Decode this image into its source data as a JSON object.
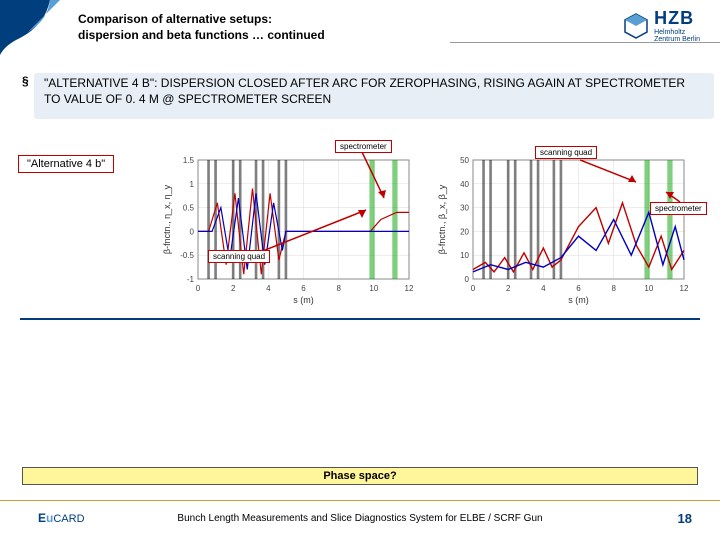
{
  "header": {
    "title_line1": "Comparison of alternative setups:",
    "title_line2": "dispersion and beta functions … continued",
    "logo_main": "HZB",
    "logo_sub1": "Helmholtz",
    "logo_sub2": "Zentrum Berlin"
  },
  "bullet": {
    "text": "\"ALTERNATIVE 4 B\": DISPERSION CLOSED AFTER ARC FOR ZEROPHASING, RISING AGAIN AT SPECTROMETER TO VALUE OF 0. 4 M @ SPECTROMETER SCREEN"
  },
  "alt_label": "\"Alternative 4 b\"",
  "annotations": {
    "spec_top": "spectrometer",
    "scan_top": "scanning quad",
    "spec_right": "spectrometer",
    "scan_bottom": "scanning quad"
  },
  "phase_question": "Phase space?",
  "footer": {
    "logo_e": "E",
    "logo_u": "u",
    "logo_rest": "CARD",
    "text": "Bunch Length Measurements and Slice Diagnostics System for ELBE / SCRF Gun",
    "page": "18"
  },
  "chart_left": {
    "type": "line",
    "xlabel": "s (m)",
    "ylabel": "β-fnctn., η_x, η_y",
    "xlim": [
      0,
      12
    ],
    "ylim": [
      -1.0,
      1.5
    ],
    "xticks": [
      0,
      2,
      4,
      6,
      8,
      10,
      12
    ],
    "yticks": [
      -1.0,
      -0.5,
      0.0,
      0.5,
      1.0,
      1.5
    ],
    "grid_color": "#d9d9d9",
    "bg": "#ffffff",
    "label_fontsize": 8,
    "lattice_bars": [
      {
        "x": 0.6,
        "w": 0.15,
        "c": "#000"
      },
      {
        "x": 1.0,
        "w": 0.15,
        "c": "#000"
      },
      {
        "x": 2.0,
        "w": 0.15,
        "c": "#000"
      },
      {
        "x": 2.4,
        "w": 0.15,
        "c": "#000"
      },
      {
        "x": 3.3,
        "w": 0.15,
        "c": "#000"
      },
      {
        "x": 3.7,
        "w": 0.15,
        "c": "#000"
      },
      {
        "x": 4.6,
        "w": 0.15,
        "c": "#000"
      },
      {
        "x": 5.0,
        "w": 0.15,
        "c": "#000"
      },
      {
        "x": 9.9,
        "w": 0.3,
        "c": "#00a000"
      },
      {
        "x": 11.2,
        "w": 0.3,
        "c": "#00a000"
      }
    ],
    "series": [
      {
        "name": "eta_x",
        "color": "#c00000",
        "width": 1.2,
        "pts": [
          [
            0,
            0
          ],
          [
            0.6,
            0
          ],
          [
            1.1,
            0.6
          ],
          [
            1.6,
            -0.7
          ],
          [
            2.1,
            0.8
          ],
          [
            2.6,
            -0.9
          ],
          [
            3.1,
            0.9
          ],
          [
            3.6,
            -0.9
          ],
          [
            4.1,
            0.8
          ],
          [
            4.6,
            -0.6
          ],
          [
            5.0,
            0
          ],
          [
            9.8,
            0
          ],
          [
            10.4,
            0.25
          ],
          [
            11.3,
            0.4
          ],
          [
            12,
            0.4
          ]
        ]
      },
      {
        "name": "eta_y",
        "color": "#0000c0",
        "width": 1.2,
        "pts": [
          [
            0,
            0
          ],
          [
            0.8,
            0
          ],
          [
            1.3,
            0.5
          ],
          [
            1.8,
            -0.6
          ],
          [
            2.3,
            0.7
          ],
          [
            2.8,
            -0.8
          ],
          [
            3.3,
            0.8
          ],
          [
            3.8,
            -0.7
          ],
          [
            4.3,
            0.6
          ],
          [
            4.8,
            -0.4
          ],
          [
            5.0,
            0
          ],
          [
            12,
            0
          ]
        ]
      }
    ]
  },
  "chart_right": {
    "type": "line",
    "xlabel": "s (m)",
    "ylabel": "β-fnctn., β_x, β_y",
    "xlim": [
      0,
      12
    ],
    "ylim": [
      0,
      50
    ],
    "xticks": [
      0,
      2,
      4,
      6,
      8,
      10,
      12
    ],
    "yticks": [
      0,
      10,
      20,
      30,
      40,
      50
    ],
    "grid_color": "#d9d9d9",
    "bg": "#ffffff",
    "label_fontsize": 8,
    "lattice_bars": [
      {
        "x": 0.6,
        "w": 0.15,
        "c": "#000"
      },
      {
        "x": 1.0,
        "w": 0.15,
        "c": "#000"
      },
      {
        "x": 2.0,
        "w": 0.15,
        "c": "#000"
      },
      {
        "x": 2.4,
        "w": 0.15,
        "c": "#000"
      },
      {
        "x": 3.3,
        "w": 0.15,
        "c": "#000"
      },
      {
        "x": 3.7,
        "w": 0.15,
        "c": "#000"
      },
      {
        "x": 4.6,
        "w": 0.15,
        "c": "#000"
      },
      {
        "x": 5.0,
        "w": 0.15,
        "c": "#000"
      },
      {
        "x": 9.9,
        "w": 0.3,
        "c": "#00a000"
      },
      {
        "x": 11.2,
        "w": 0.3,
        "c": "#00a000"
      }
    ],
    "series": [
      {
        "name": "beta_x",
        "color": "#c00000",
        "width": 1.4,
        "pts": [
          [
            0,
            4
          ],
          [
            0.7,
            7
          ],
          [
            1.2,
            3
          ],
          [
            1.8,
            9
          ],
          [
            2.3,
            3
          ],
          [
            2.9,
            11
          ],
          [
            3.4,
            4
          ],
          [
            4.0,
            13
          ],
          [
            4.5,
            5
          ],
          [
            5.0,
            8
          ],
          [
            6.0,
            22
          ],
          [
            7.0,
            30
          ],
          [
            7.7,
            15
          ],
          [
            8.5,
            32
          ],
          [
            9.3,
            14
          ],
          [
            10.0,
            5
          ],
          [
            10.7,
            18
          ],
          [
            11.3,
            4
          ],
          [
            12,
            12
          ]
        ]
      },
      {
        "name": "beta_y",
        "color": "#0000c0",
        "width": 1.4,
        "pts": [
          [
            0,
            3
          ],
          [
            1.0,
            6
          ],
          [
            2.0,
            4
          ],
          [
            3.0,
            7
          ],
          [
            4.0,
            5
          ],
          [
            5.0,
            9
          ],
          [
            6.0,
            18
          ],
          [
            7.0,
            12
          ],
          [
            8.0,
            25
          ],
          [
            9.0,
            10
          ],
          [
            10.0,
            28
          ],
          [
            10.8,
            6
          ],
          [
            11.5,
            22
          ],
          [
            12,
            8
          ]
        ]
      }
    ]
  },
  "arrows": {
    "color": "#c00000",
    "stroke": 1.5
  }
}
